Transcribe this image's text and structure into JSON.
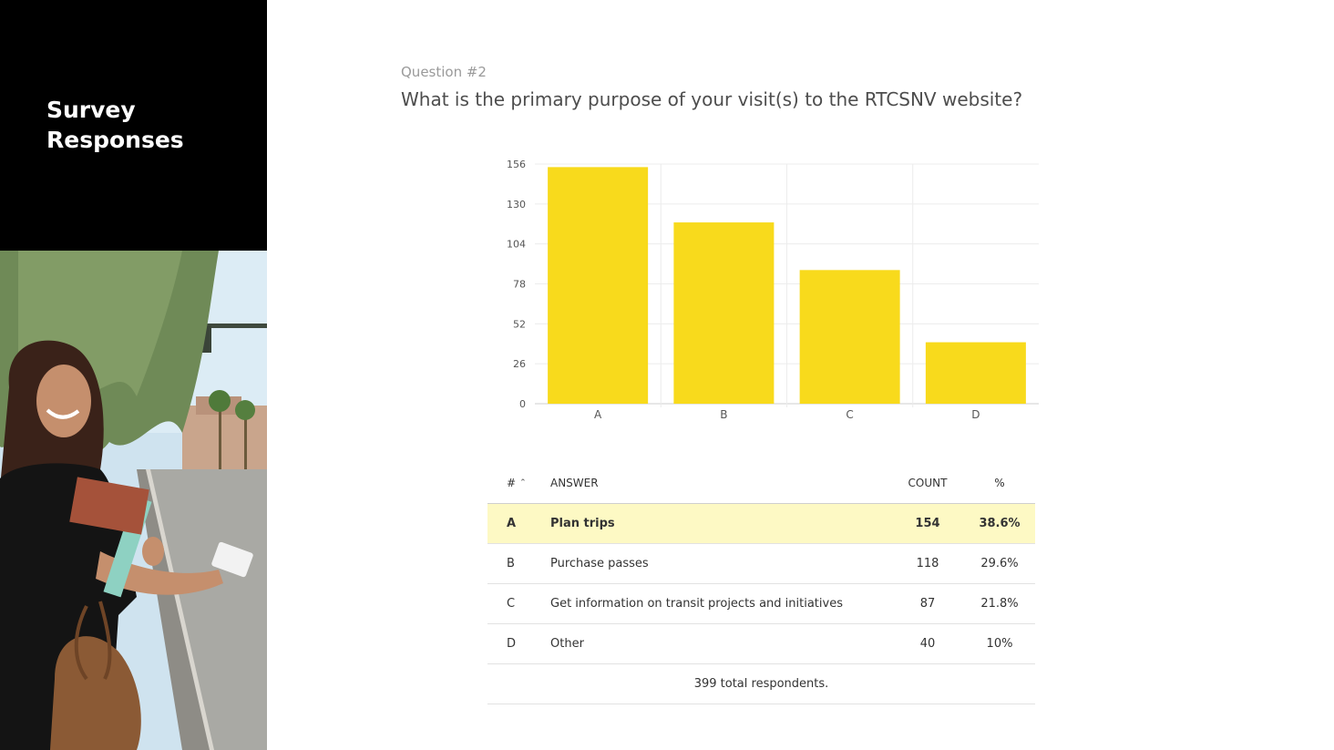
{
  "sidebar": {
    "title_line1": "Survey",
    "title_line2": "Responses"
  },
  "question": {
    "label": "Question #2",
    "text": "What is the primary purpose of your visit(s) to the RTCSNV website?"
  },
  "colors": {
    "bar": "#f8da1c",
    "highlight_row": "#fdf9c4",
    "sidebar_bg": "#000000"
  },
  "chart_data": {
    "type": "bar",
    "categories": [
      "A",
      "B",
      "C",
      "D"
    ],
    "values": [
      154,
      118,
      87,
      40
    ],
    "ylim": [
      0,
      156
    ],
    "yticks": [
      0,
      26,
      52,
      78,
      104,
      130,
      156
    ],
    "title": "",
    "xlabel": "",
    "ylabel": "",
    "grid": true
  },
  "table": {
    "headers": {
      "num": "#",
      "answer": "ANSWER",
      "count": "COUNT",
      "pct": "%"
    },
    "rows": [
      {
        "num": "A",
        "answer": "Plan trips",
        "count": "154",
        "pct": "38.6%"
      },
      {
        "num": "B",
        "answer": "Purchase passes",
        "count": "118",
        "pct": "29.6%"
      },
      {
        "num": "C",
        "answer": "Get information on transit projects and initiatives",
        "count": "87",
        "pct": "21.8%"
      },
      {
        "num": "D",
        "answer": "Other",
        "count": "40",
        "pct": "10%"
      }
    ],
    "total": "399 total respondents."
  }
}
